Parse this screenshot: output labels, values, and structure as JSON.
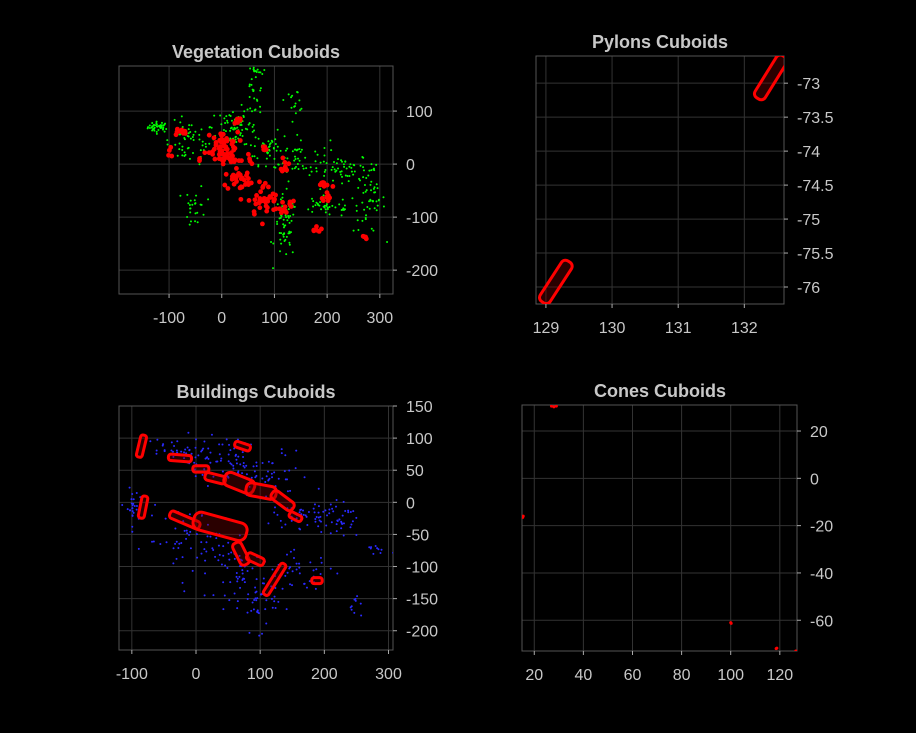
{
  "chart_data": [
    {
      "type": "scatter",
      "title": "Vegetation Cuboids",
      "xlim": [
        -195,
        325
      ],
      "ylim": [
        -245,
        185
      ],
      "xticks": [
        -100,
        0,
        100,
        200,
        300
      ],
      "yticks": [
        100,
        0,
        -100,
        -200
      ],
      "grid": true,
      "y_axis_side": "right",
      "series": [
        {
          "color": "#00ff00",
          "marker": "point",
          "clusters": [
            {
              "cx": -120,
              "cy": 70,
              "sx": 10,
              "sy": 5,
              "n": 40
            },
            {
              "cx": -60,
              "cy": 40,
              "sx": 25,
              "sy": 20,
              "n": 60
            },
            {
              "cx": 20,
              "cy": 70,
              "sx": 15,
              "sy": 20,
              "n": 60
            },
            {
              "cx": 90,
              "cy": 30,
              "sx": 20,
              "sy": 15,
              "n": 40
            },
            {
              "cx": 145,
              "cy": 10,
              "sx": 30,
              "sy": 20,
              "n": 50
            },
            {
              "cx": 240,
              "cy": -10,
              "sx": 30,
              "sy": 10,
              "n": 50
            },
            {
              "cx": 280,
              "cy": -70,
              "sx": 15,
              "sy": 30,
              "n": 50
            },
            {
              "cx": 200,
              "cy": -80,
              "sx": 30,
              "sy": 10,
              "n": 40
            },
            {
              "cx": 120,
              "cy": -120,
              "sx": 10,
              "sy": 30,
              "n": 60
            },
            {
              "cx": -50,
              "cy": -80,
              "sx": 10,
              "sy": 20,
              "n": 25
            },
            {
              "cx": 60,
              "cy": 120,
              "sx": 10,
              "sy": 40,
              "n": 40
            },
            {
              "cx": 140,
              "cy": 120,
              "sx": 10,
              "sy": 10,
              "n": 15
            },
            {
              "cx": 65,
              "cy": 175,
              "sx": 5,
              "sy": 3,
              "n": 10
            }
          ]
        },
        {
          "color": "#ff0000",
          "marker": "circle",
          "clusters": [
            {
              "cx": -80,
              "cy": 60,
              "sx": 8,
              "sy": 4,
              "n": 10
            },
            {
              "cx": 0,
              "cy": 40,
              "sx": 15,
              "sy": 10,
              "n": 35
            },
            {
              "cx": 10,
              "cy": 10,
              "sx": 25,
              "sy": 10,
              "n": 40
            },
            {
              "cx": 40,
              "cy": -30,
              "sx": 20,
              "sy": 10,
              "n": 30
            },
            {
              "cx": 80,
              "cy": -70,
              "sx": 15,
              "sy": 15,
              "n": 35
            },
            {
              "cx": 120,
              "cy": -80,
              "sx": 10,
              "sy": 10,
              "n": 12
            },
            {
              "cx": 120,
              "cy": 0,
              "sx": 3,
              "sy": 8,
              "n": 10
            },
            {
              "cx": 200,
              "cy": -50,
              "sx": 5,
              "sy": 10,
              "n": 12
            },
            {
              "cx": 180,
              "cy": -120,
              "sx": 5,
              "sy": 5,
              "n": 6
            },
            {
              "cx": 270,
              "cy": -140,
              "sx": 3,
              "sy": 3,
              "n": 5
            },
            {
              "cx": 190,
              "cy": -35,
              "sx": 3,
              "sy": 3,
              "n": 4
            },
            {
              "cx": 30,
              "cy": 80,
              "sx": 5,
              "sy": 5,
              "n": 8
            },
            {
              "cx": 80,
              "cy": 30,
              "sx": 4,
              "sy": 4,
              "n": 5
            },
            {
              "cx": -100,
              "cy": 20,
              "sx": 5,
              "sy": 5,
              "n": 4
            }
          ]
        }
      ]
    },
    {
      "type": "scatter",
      "title": "Pylons Cuboids",
      "xlim": [
        128.85,
        132.6
      ],
      "ylim": [
        -76.25,
        -72.6
      ],
      "xticks": [
        129,
        130,
        131,
        132
      ],
      "xtick_labels": [
        "129",
        "130",
        "131",
        "132"
      ],
      "yticks": [
        -73,
        -73.5,
        -74,
        -74.5,
        -75,
        -75.5,
        -76
      ],
      "ytick_labels": [
        "-73",
        "-73.5",
        "-74",
        "-74.5",
        "-75",
        "-75.5",
        "-76"
      ],
      "grid": true,
      "y_axis_side": "right",
      "cuboids": [
        {
          "x1": 129.0,
          "y1": -76.15,
          "x2": 129.3,
          "y2": -75.7,
          "width": 0.18,
          "color": "#ff0000"
        },
        {
          "x1": 132.25,
          "y1": -73.15,
          "x2": 132.55,
          "y2": -72.68,
          "width": 0.18,
          "color": "#ff0000"
        }
      ]
    },
    {
      "type": "scatter",
      "title": "Buildings Cuboids",
      "xlim": [
        -120,
        307
      ],
      "ylim": [
        -230,
        150
      ],
      "xticks": [
        -100,
        0,
        100,
        200,
        300
      ],
      "yticks": [
        150,
        100,
        50,
        0,
        -50,
        -100,
        -150,
        -200
      ],
      "grid": true,
      "y_axis_side": "right",
      "series": [
        {
          "color": "#2a2aff",
          "marker": "point",
          "clusters": [
            {
              "cx": -40,
              "cy": 80,
              "sx": 25,
              "sy": 10,
              "n": 30
            },
            {
              "cx": 30,
              "cy": 70,
              "sx": 25,
              "sy": 20,
              "n": 50
            },
            {
              "cx": 100,
              "cy": 40,
              "sx": 40,
              "sy": 20,
              "n": 70
            },
            {
              "cx": 180,
              "cy": -20,
              "sx": 30,
              "sy": 10,
              "n": 60
            },
            {
              "cx": -100,
              "cy": -10,
              "sx": 5,
              "sy": 15,
              "n": 25
            },
            {
              "cx": 0,
              "cy": -60,
              "sx": 40,
              "sy": 25,
              "n": 60
            },
            {
              "cx": 70,
              "cy": -110,
              "sx": 20,
              "sy": 20,
              "n": 50
            },
            {
              "cx": 160,
              "cy": -110,
              "sx": 30,
              "sy": 15,
              "n": 40
            },
            {
              "cx": 100,
              "cy": -160,
              "sx": 15,
              "sy": 20,
              "n": 35
            },
            {
              "cx": 230,
              "cy": -30,
              "sx": 10,
              "sy": 15,
              "n": 20
            },
            {
              "cx": 250,
              "cy": -160,
              "sx": 5,
              "sy": 10,
              "n": 10
            },
            {
              "cx": 280,
              "cy": -75,
              "sx": 10,
              "sy": 5,
              "n": 10
            }
          ]
        }
      ],
      "cuboids": [
        {
          "x1": -88,
          "y1": 75,
          "x2": -82,
          "y2": 100,
          "width": 8,
          "color": "#ff0000"
        },
        {
          "x1": -38,
          "y1": 70,
          "x2": -12,
          "y2": 68,
          "width": 10,
          "color": "#ff0000"
        },
        {
          "x1": 65,
          "y1": 90,
          "x2": 80,
          "y2": 85,
          "width": 8,
          "color": "#ff0000"
        },
        {
          "x1": 0,
          "y1": 52,
          "x2": 15,
          "y2": 52,
          "width": 10,
          "color": "#ff0000"
        },
        {
          "x1": 20,
          "y1": 40,
          "x2": 40,
          "y2": 35,
          "width": 12,
          "color": "#ff0000"
        },
        {
          "x1": 55,
          "y1": 35,
          "x2": 80,
          "y2": 25,
          "width": 22,
          "color": "#ff0000"
        },
        {
          "x1": 88,
          "y1": 20,
          "x2": 115,
          "y2": 15,
          "width": 20,
          "color": "#ff0000"
        },
        {
          "x1": 125,
          "y1": 10,
          "x2": 145,
          "y2": -5,
          "width": 15,
          "color": "#ff0000"
        },
        {
          "x1": 150,
          "y1": -20,
          "x2": 160,
          "y2": -25,
          "width": 8,
          "color": "#ff0000"
        },
        {
          "x1": -85,
          "y1": -20,
          "x2": -80,
          "y2": 5,
          "width": 8,
          "color": "#ff0000"
        },
        {
          "x1": -35,
          "y1": -20,
          "x2": 0,
          "y2": -35,
          "width": 12,
          "color": "#ff0000"
        },
        {
          "x1": 10,
          "y1": -30,
          "x2": 65,
          "y2": -45,
          "width": 28,
          "color": "#ff0000"
        },
        {
          "x1": 65,
          "y1": -70,
          "x2": 75,
          "y2": -90,
          "width": 15,
          "color": "#ff0000"
        },
        {
          "x1": 85,
          "y1": -85,
          "x2": 100,
          "y2": -92,
          "width": 12,
          "color": "#ff0000"
        },
        {
          "x1": 110,
          "y1": -140,
          "x2": 135,
          "y2": -100,
          "width": 8,
          "color": "#ff0000"
        },
        {
          "x1": 185,
          "y1": -122,
          "x2": 192,
          "y2": -122,
          "width": 6,
          "color": "#ff0000"
        }
      ]
    },
    {
      "type": "scatter",
      "title": "Cones Cuboids",
      "xlim": [
        15,
        127
      ],
      "ylim": [
        -73,
        31
      ],
      "xticks": [
        20,
        40,
        60,
        80,
        100,
        120
      ],
      "yticks": [
        20,
        0,
        -20,
        -40,
        -60
      ],
      "grid": true,
      "y_axis_side": "right",
      "series": [
        {
          "color": "#ff0000",
          "marker": "small",
          "points": [
            [
              27,
              30.5
            ],
            [
              29,
              30.5
            ],
            [
              28,
              30.2
            ],
            [
              15.5,
              -16
            ],
            [
              15.3,
              -16.5
            ],
            [
              100,
              -61
            ],
            [
              100.2,
              -61.3
            ],
            [
              118.5,
              -72
            ],
            [
              118.8,
              -71.8
            ],
            [
              126.5,
              -73
            ]
          ]
        }
      ]
    }
  ]
}
